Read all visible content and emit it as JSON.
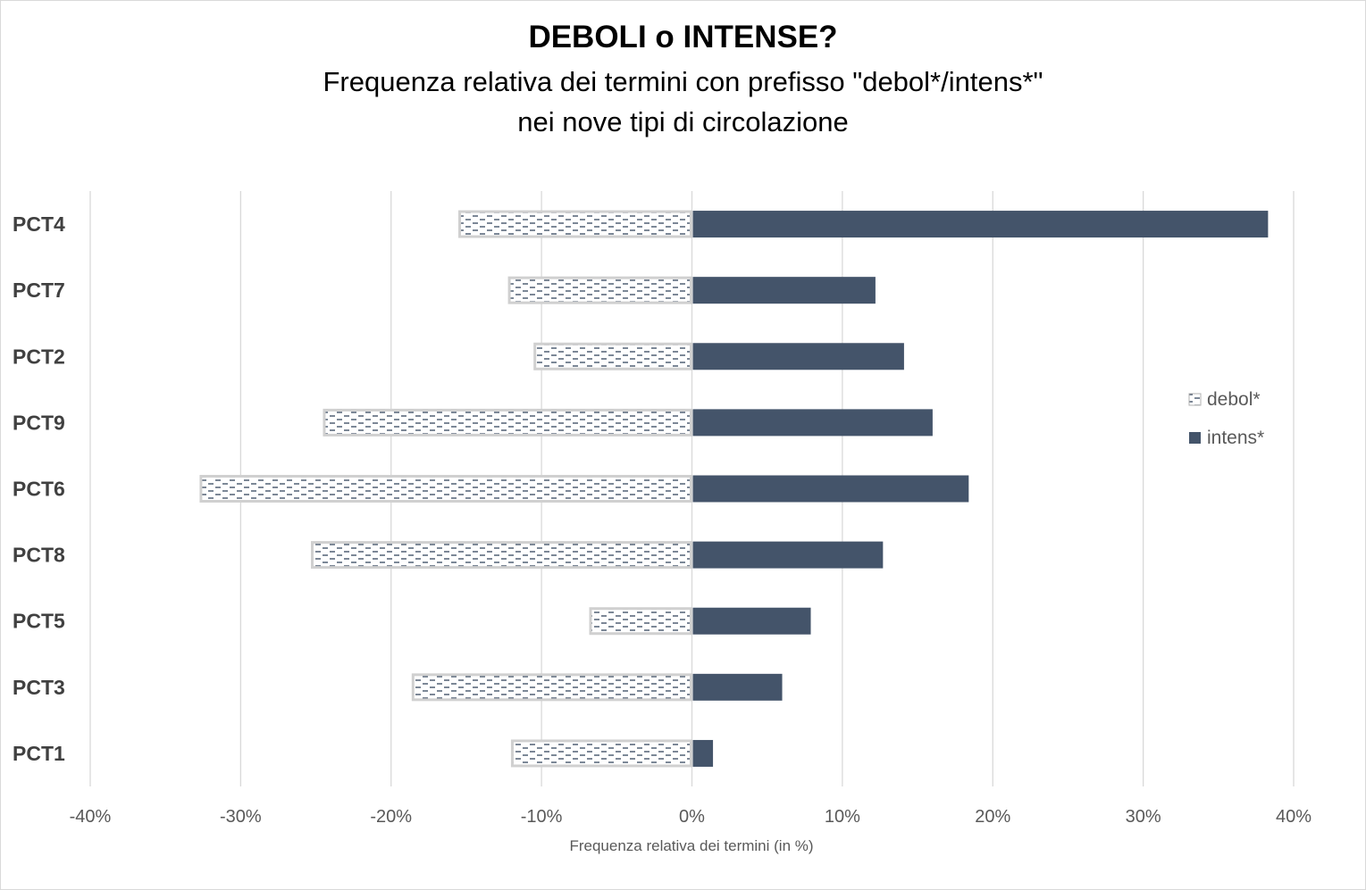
{
  "chart_data": {
    "type": "bar",
    "orientation": "horizontal",
    "title": "DEBOLI o INTENSE?",
    "subtitle_lines": [
      "Frequenza relativa dei termini con prefisso \"debol*/intens*\"",
      "nei nove tipi di circolazione"
    ],
    "xlabel": "Frequenza relativa dei termini (in %)",
    "xlim": [
      -40,
      40
    ],
    "xticks": [
      -40,
      -30,
      -20,
      -10,
      0,
      10,
      20,
      30,
      40
    ],
    "xtick_labels": [
      "-40%",
      "-30%",
      "-20%",
      "-10%",
      "0%",
      "10%",
      "20%",
      "30%",
      "40%"
    ],
    "categories": [
      "PCT4",
      "PCT7",
      "PCT2",
      "PCT9",
      "PCT6",
      "PCT8",
      "PCT5",
      "PCT3",
      "PCT1"
    ],
    "series": [
      {
        "name": "debol*",
        "values": [
          -15.5,
          -12.2,
          -10.5,
          -24.5,
          -32.7,
          -25.3,
          -6.8,
          -18.6,
          -12.0
        ],
        "color": "#ffffff",
        "pattern_color": "#44546a",
        "border_color": "#d0d0d0"
      },
      {
        "name": "intens*",
        "values": [
          38.3,
          12.2,
          14.1,
          16.0,
          18.4,
          12.7,
          7.9,
          6.0,
          1.4
        ],
        "color": "#44546a"
      }
    ],
    "grid": true,
    "legend_position": "right"
  }
}
